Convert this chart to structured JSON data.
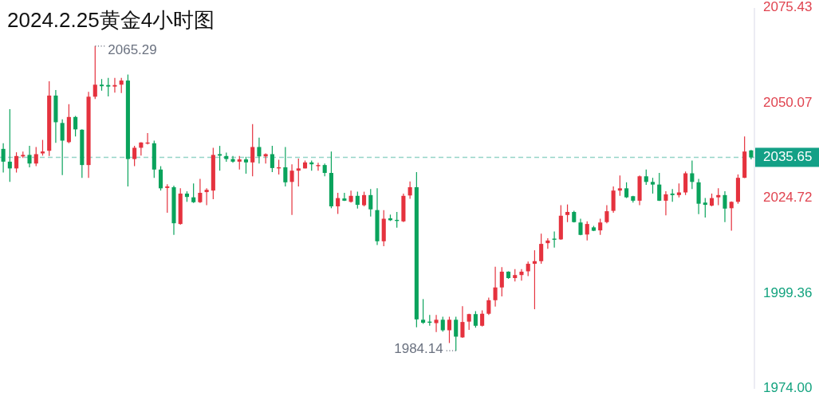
{
  "chart_data": {
    "type": "candlestick",
    "title": "2024.2.25黄金4小时图",
    "categories": [
      null,
      null,
      null,
      null,
      null,
      null,
      null,
      null,
      null,
      null,
      null,
      null,
      null,
      null,
      null,
      null,
      null,
      null,
      null,
      null,
      null,
      null,
      null,
      null,
      null,
      null,
      null,
      null,
      null,
      null,
      null,
      null,
      null,
      null,
      null,
      null,
      null,
      null,
      null,
      null,
      null,
      null,
      null,
      null,
      null,
      null,
      null,
      null,
      null,
      null,
      null,
      null,
      null,
      null,
      null,
      null,
      null,
      null,
      null,
      null,
      null,
      null,
      null,
      null,
      null,
      null,
      null,
      null,
      null,
      null,
      null,
      null,
      null,
      null,
      null,
      null,
      null,
      null,
      null,
      null,
      null,
      null,
      null,
      null,
      null,
      null,
      null,
      null,
      null,
      null,
      null,
      null,
      null,
      null,
      null,
      null,
      null,
      null,
      null,
      null,
      null,
      null,
      null,
      null,
      null,
      null,
      null,
      null,
      null,
      null,
      null,
      null,
      null,
      null,
      null
    ],
    "ohlc": [
      [
        2037.9,
        2039.4,
        2031.6,
        2034.5
      ],
      [
        2034.5,
        2048.5,
        2029.1,
        2032.7
      ],
      [
        2032.7,
        2037.0,
        2031.6,
        2036.0
      ],
      [
        2035.9,
        2037.2,
        2035.5,
        2036.3
      ],
      [
        2036.3,
        2038.7,
        2033.0,
        2034.0
      ],
      [
        2034.0,
        2038.4,
        2033.3,
        2036.5
      ],
      [
        2036.7,
        2040.3,
        2036.1,
        2037.2
      ],
      [
        2037.4,
        2055.9,
        2036.0,
        2052.1
      ],
      [
        2052.1,
        2053.6,
        2039.5,
        2045.0
      ],
      [
        2044.8,
        2045.8,
        2030.9,
        2040.1
      ],
      [
        2039.7,
        2049.8,
        2039.4,
        2046.4
      ],
      [
        2046.4,
        2046.7,
        2041.2,
        2043.1
      ],
      [
        2043.0,
        2043.1,
        2030.2,
        2033.6
      ],
      [
        2033.6,
        2053.1,
        2030.2,
        2051.8
      ],
      [
        2051.8,
        2065.29,
        2051.2,
        2055.0
      ],
      [
        2055.0,
        2056.5,
        2053.4,
        2054.6
      ],
      [
        2054.9,
        2056.8,
        2051.9,
        2054.5
      ],
      [
        2054.5,
        2056.8,
        2052.9,
        2054.9
      ],
      [
        2055.0,
        2056.8,
        2052.8,
        2056.1
      ],
      [
        2056.1,
        2057.7,
        2027.9,
        2035.2
      ],
      [
        2035.2,
        2038.7,
        2033.3,
        2038.2
      ],
      [
        2038.2,
        2039.7,
        2036.1,
        2039.6
      ],
      [
        2039.3,
        2042.1,
        2039.1,
        2039.6
      ],
      [
        2039.4,
        2040.1,
        2030.2,
        2032.4
      ],
      [
        2032.4,
        2033.3,
        2026.8,
        2027.4
      ],
      [
        2027.5,
        2028.5,
        2020.9,
        2027.9
      ],
      [
        2027.7,
        2028.1,
        2015.0,
        2018.1
      ],
      [
        2017.9,
        2027.4,
        2017.7,
        2026.0
      ],
      [
        2026.0,
        2026.6,
        2023.8,
        2025.1
      ],
      [
        2025.0,
        2028.7,
        2023.5,
        2023.7
      ],
      [
        2023.7,
        2029.9,
        2023.5,
        2026.2
      ],
      [
        2026.4,
        2027.4,
        2022.9,
        2027.0
      ],
      [
        2026.8,
        2038.2,
        2024.5,
        2036.3
      ],
      [
        2036.5,
        2038.7,
        2032.1,
        2036.1
      ],
      [
        2036.0,
        2036.9,
        2034.5,
        2035.2
      ],
      [
        2035.2,
        2036.0,
        2034.2,
        2034.5
      ],
      [
        2034.5,
        2036.0,
        2032.4,
        2035.1
      ],
      [
        2035.1,
        2035.8,
        2031.3,
        2034.3
      ],
      [
        2034.3,
        2044.5,
        2030.6,
        2038.4
      ],
      [
        2038.4,
        2040.9,
        2034.0,
        2035.9
      ],
      [
        2035.9,
        2036.7,
        2034.0,
        2036.5
      ],
      [
        2036.5,
        2038.7,
        2031.7,
        2032.8
      ],
      [
        2032.7,
        2035.0,
        2031.1,
        2033.0
      ],
      [
        2033.0,
        2038.4,
        2027.9,
        2029.0
      ],
      [
        2029.1,
        2033.8,
        2020.3,
        2032.1
      ],
      [
        2032.1,
        2035.3,
        2027.9,
        2032.7
      ],
      [
        2032.7,
        2034.8,
        2032.7,
        2034.3
      ],
      [
        2034.3,
        2034.8,
        2032.1,
        2033.8
      ],
      [
        2033.3,
        2034.2,
        2032.1,
        2033.6
      ],
      [
        2033.6,
        2034.0,
        2030.6,
        2031.5
      ],
      [
        2031.5,
        2037.2,
        2022.1,
        2022.6
      ],
      [
        2022.6,
        2026.2,
        2020.6,
        2024.8
      ],
      [
        2024.7,
        2026.2,
        2024.0,
        2024.1
      ],
      [
        2023.8,
        2026.8,
        2023.6,
        2025.4
      ],
      [
        2025.4,
        2026.5,
        2022.0,
        2023.0
      ],
      [
        2022.9,
        2026.5,
        2022.6,
        2025.6
      ],
      [
        2025.6,
        2027.2,
        2019.9,
        2021.8
      ],
      [
        2021.6,
        2027.4,
        2012.3,
        2013.3
      ],
      [
        2013.3,
        2021.6,
        2012.0,
        2019.3
      ],
      [
        2019.4,
        2020.4,
        2018.7,
        2018.9
      ],
      [
        2019.0,
        2021.1,
        2016.9,
        2018.7
      ],
      [
        2018.6,
        2026.0,
        2018.4,
        2025.4
      ],
      [
        2025.5,
        2029.2,
        2024.6,
        2027.7
      ],
      [
        2027.7,
        2031.7,
        1990.4,
        1992.5
      ],
      [
        1992.4,
        1997.9,
        1991.3,
        1991.6
      ],
      [
        1991.9,
        1993.7,
        1990.8,
        1991.6
      ],
      [
        1991.5,
        1993.7,
        1989.1,
        1992.4
      ],
      [
        1992.4,
        1993.2,
        1989.2,
        1989.6
      ],
      [
        1989.6,
        1993.2,
        1986.2,
        1992.4
      ],
      [
        1992.4,
        1993.2,
        1984.14,
        1987.9
      ],
      [
        1987.7,
        1996.0,
        1987.6,
        1991.8
      ],
      [
        1991.9,
        1994.0,
        1989.7,
        1993.9
      ],
      [
        1993.9,
        1994.7,
        1990.3,
        1990.8
      ],
      [
        1990.8,
        1994.9,
        1990.6,
        1994.0
      ],
      [
        1994.0,
        1998.3,
        1993.7,
        1997.6
      ],
      [
        1997.6,
        2006.5,
        1995.9,
        2001.0
      ],
      [
        2001.0,
        2006.4,
        1998.6,
        2005.2
      ],
      [
        2005.2,
        2005.3,
        2003.3,
        2003.5
      ],
      [
        2003.5,
        2005.9,
        2002.6,
        2004.3
      ],
      [
        2004.3,
        2005.9,
        2002.8,
        2005.2
      ],
      [
        2005.3,
        2007.9,
        2004.0,
        2007.3
      ],
      [
        2007.3,
        2010.9,
        1995.2,
        2008.0
      ],
      [
        2008.0,
        2015.3,
        2007.3,
        2012.6
      ],
      [
        2012.8,
        2014.1,
        2011.3,
        2013.5
      ],
      [
        2014.0,
        2015.9,
        2011.6,
        2013.7
      ],
      [
        2013.8,
        2022.9,
        2013.7,
        2020.1
      ],
      [
        2020.3,
        2023.1,
        2018.4,
        2021.1
      ],
      [
        2021.1,
        2021.4,
        2018.3,
        2018.4
      ],
      [
        2018.3,
        2019.3,
        2014.9,
        2015.0
      ],
      [
        2015.1,
        2018.6,
        2013.5,
        2017.9
      ],
      [
        2017.0,
        2017.4,
        2016.0,
        2016.1
      ],
      [
        2016.2,
        2019.3,
        2015.0,
        2018.3
      ],
      [
        2018.4,
        2022.9,
        2018.1,
        2021.3
      ],
      [
        2021.4,
        2027.9,
        2020.9,
        2026.8
      ],
      [
        2026.8,
        2030.8,
        2025.4,
        2027.4
      ],
      [
        2027.4,
        2029.0,
        2024.8,
        2025.0
      ],
      [
        2025.3,
        2025.4,
        2023.6,
        2024.1
      ],
      [
        2024.1,
        2030.8,
        2022.9,
        2030.6
      ],
      [
        2030.6,
        2032.4,
        2028.3,
        2029.1
      ],
      [
        2029.1,
        2030.2,
        2026.0,
        2028.4
      ],
      [
        2028.4,
        2031.5,
        2024.0,
        2024.1
      ],
      [
        2024.1,
        2026.6,
        2020.2,
        2025.8
      ],
      [
        2026.0,
        2027.2,
        2023.8,
        2025.6
      ],
      [
        2025.6,
        2028.7,
        2025.0,
        2026.3
      ],
      [
        2026.3,
        2031.9,
        2025.6,
        2031.4
      ],
      [
        2031.4,
        2034.8,
        2027.2,
        2029.1
      ],
      [
        2029.0,
        2029.9,
        2020.5,
        2023.3
      ],
      [
        2023.6,
        2024.8,
        2019.6,
        2023.0
      ],
      [
        2022.8,
        2026.0,
        2022.6,
        2024.8
      ],
      [
        2025.0,
        2027.4,
        2022.9,
        2025.6
      ],
      [
        2025.6,
        2026.6,
        2018.4,
        2022.0
      ],
      [
        2022.1,
        2023.9,
        2016.1,
        2023.8
      ],
      [
        2023.8,
        2031.1,
        2023.3,
        2030.2
      ],
      [
        2030.2,
        2041.2,
        2030.1,
        2037.2
      ],
      [
        2037.5,
        2037.6,
        2035.1,
        2035.65
      ]
    ],
    "colors": [
      "#0aa35c",
      "#0aa35c",
      "#e5323e",
      "#e5323e",
      "#0aa35c",
      "#e5323e",
      "#e5323e",
      "#e5323e",
      "#0aa35c",
      "#0aa35c",
      "#e5323e",
      "#0aa35c",
      "#0aa35c",
      "#e5323e",
      "#e5323e",
      "#0aa35c",
      "#0aa35c",
      "#e5323e",
      "#e5323e",
      "#0aa35c",
      "#e5323e",
      "#e5323e",
      "#e5323e",
      "#0aa35c",
      "#0aa35c",
      "#e5323e",
      "#0aa35c",
      "#e5323e",
      "#0aa35c",
      "#0aa35c",
      "#e5323e",
      "#e5323e",
      "#e5323e",
      "#0aa35c",
      "#0aa35c",
      "#0aa35c",
      "#e5323e",
      "#0aa35c",
      "#e5323e",
      "#0aa35c",
      "#e5323e",
      "#0aa35c",
      "#e5323e",
      "#0aa35c",
      "#e5323e",
      "#e5323e",
      "#e5323e",
      "#0aa35c",
      "#e5323e",
      "#0aa35c",
      "#0aa35c",
      "#e5323e",
      "#0aa35c",
      "#e5323e",
      "#0aa35c",
      "#e5323e",
      "#0aa35c",
      "#0aa35c",
      "#e5323e",
      "#0aa35c",
      "#0aa35c",
      "#e5323e",
      "#e5323e",
      "#0aa35c",
      "#0aa35c",
      "#0aa35c",
      "#e5323e",
      "#0aa35c",
      "#e5323e",
      "#0aa35c",
      "#e5323e",
      "#e5323e",
      "#0aa35c",
      "#e5323e",
      "#e5323e",
      "#e5323e",
      "#e5323e",
      "#0aa35c",
      "#e5323e",
      "#e5323e",
      "#e5323e",
      "#e5323e",
      "#e5323e",
      "#e5323e",
      "#0aa35c",
      "#e5323e",
      "#e5323e",
      "#0aa35c",
      "#0aa35c",
      "#e5323e",
      "#0aa35c",
      "#e5323e",
      "#e5323e",
      "#e5323e",
      "#e5323e",
      "#0aa35c",
      "#0aa35c",
      "#e5323e",
      "#0aa35c",
      "#0aa35c",
      "#0aa35c",
      "#e5323e",
      "#0aa35c",
      "#e5323e",
      "#e5323e",
      "#0aa35c",
      "#0aa35c",
      "#0aa35c",
      "#e5323e",
      "#e5323e",
      "#0aa35c",
      "#e5323e",
      "#e5323e",
      "#e5323e",
      "#0aa35c"
    ],
    "ylim": [
      1974,
      2075.43
    ],
    "yticks": [
      2075.43,
      2050.07,
      2024.72,
      1999.36,
      {
        "value": 1974,
        "label": "1974.00"
      }
    ],
    "ref_lines": [
      {
        "axis": "y",
        "value": 2035.65,
        "label": "2035.65",
        "color": "#13a086",
        "line_style": "dashed"
      }
    ],
    "annotations": [
      "2065.29",
      "1984.14"
    ]
  }
}
